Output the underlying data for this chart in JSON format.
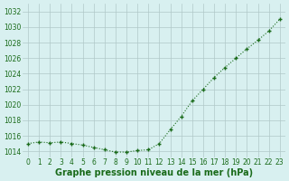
{
  "x": [
    0,
    1,
    2,
    3,
    4,
    5,
    6,
    7,
    8,
    9,
    10,
    11,
    12,
    13,
    14,
    15,
    16,
    17,
    18,
    19,
    20,
    21,
    22,
    23
  ],
  "y": [
    1015.0,
    1015.2,
    1015.1,
    1015.2,
    1015.0,
    1014.8,
    1014.5,
    1014.2,
    1013.9,
    1013.9,
    1014.1,
    1014.2,
    1015.0,
    1016.8,
    1018.5,
    1020.5,
    1022.0,
    1023.5,
    1024.8,
    1026.0,
    1027.2,
    1028.3,
    1029.5,
    1031.0
  ],
  "line_color": "#1a6b1a",
  "marker_color": "#1a6b1a",
  "bg_color": "#d8f0f0",
  "grid_color": "#b0c8c8",
  "xlabel": "Graphe pression niveau de la mer (hPa)",
  "xlabel_color": "#1a6b1a",
  "ylabel_ticks": [
    1014,
    1016,
    1018,
    1020,
    1022,
    1024,
    1026,
    1028,
    1030,
    1032
  ],
  "ylim": [
    1013.2,
    1033.0
  ],
  "xlim": [
    -0.5,
    23.5
  ],
  "xticks": [
    0,
    1,
    2,
    3,
    4,
    5,
    6,
    7,
    8,
    9,
    10,
    11,
    12,
    13,
    14,
    15,
    16,
    17,
    18,
    19,
    20,
    21,
    22,
    23
  ],
  "tick_color": "#1a6b1a",
  "tick_fontsize": 5.5,
  "xlabel_fontsize": 7.0
}
